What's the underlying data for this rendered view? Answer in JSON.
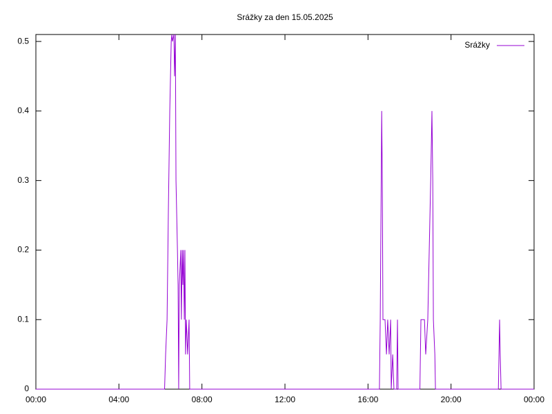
{
  "chart_data": {
    "type": "line",
    "title": "Srážky za den 15.05.2025",
    "x": [
      0,
      6.2,
      6.25,
      6.32,
      6.38,
      6.45,
      6.52,
      6.55,
      6.58,
      6.65,
      6.68,
      6.72,
      6.75,
      6.82,
      6.85,
      6.88,
      6.91,
      6.98,
      7.01,
      7.05,
      7.08,
      7.11,
      7.15,
      7.18,
      7.21,
      7.25,
      7.31,
      7.38,
      7.41,
      16.55,
      16.59,
      16.66,
      16.69,
      16.72,
      16.82,
      16.89,
      16.95,
      17.02,
      17.09,
      17.12,
      17.19,
      17.25,
      17.38,
      17.42,
      17.45,
      18.5,
      18.55,
      18.72,
      18.78,
      18.88,
      18.95,
      19.02,
      19.08,
      19.12,
      19.15,
      19.22,
      19.25,
      22.28,
      22.31,
      22.34,
      22.37,
      22.41,
      24
    ],
    "series": [
      {
        "name": "Srážky",
        "color": "#9400d3",
        "values": [
          0,
          0,
          0.05,
          0.1,
          0.25,
          0.4,
          0.5,
          0.51,
          0.5,
          0.51,
          0.45,
          0.51,
          0.3,
          0.2,
          0.15,
          0,
          0.15,
          0.2,
          0.1,
          0.2,
          0.15,
          0.2,
          0.1,
          0.2,
          0.05,
          0.1,
          0.05,
          0.1,
          0,
          0,
          0.1,
          0.4,
          0.3,
          0.1,
          0.1,
          0.05,
          0.1,
          0.05,
          0.1,
          0,
          0.05,
          0,
          0,
          0.1,
          0,
          0,
          0.1,
          0.1,
          0.05,
          0.1,
          0.2,
          0.3,
          0.4,
          0.3,
          0.1,
          0.05,
          0,
          0,
          0.05,
          0.1,
          0.05,
          0,
          0
        ]
      }
    ],
    "xlim": [
      0,
      24
    ],
    "xticks": [
      {
        "value": 0,
        "label": "00:00"
      },
      {
        "value": 4,
        "label": "04:00"
      },
      {
        "value": 8,
        "label": "08:00"
      },
      {
        "value": 12,
        "label": "12:00"
      },
      {
        "value": 16,
        "label": "16:00"
      },
      {
        "value": 20,
        "label": "20:00"
      },
      {
        "value": 24,
        "label": "00:00"
      }
    ],
    "ylim": [
      0,
      0.51
    ],
    "yticks": [
      0,
      0.1,
      0.2,
      0.3,
      0.4,
      0.5
    ],
    "legend": "top-right",
    "grid": false
  }
}
